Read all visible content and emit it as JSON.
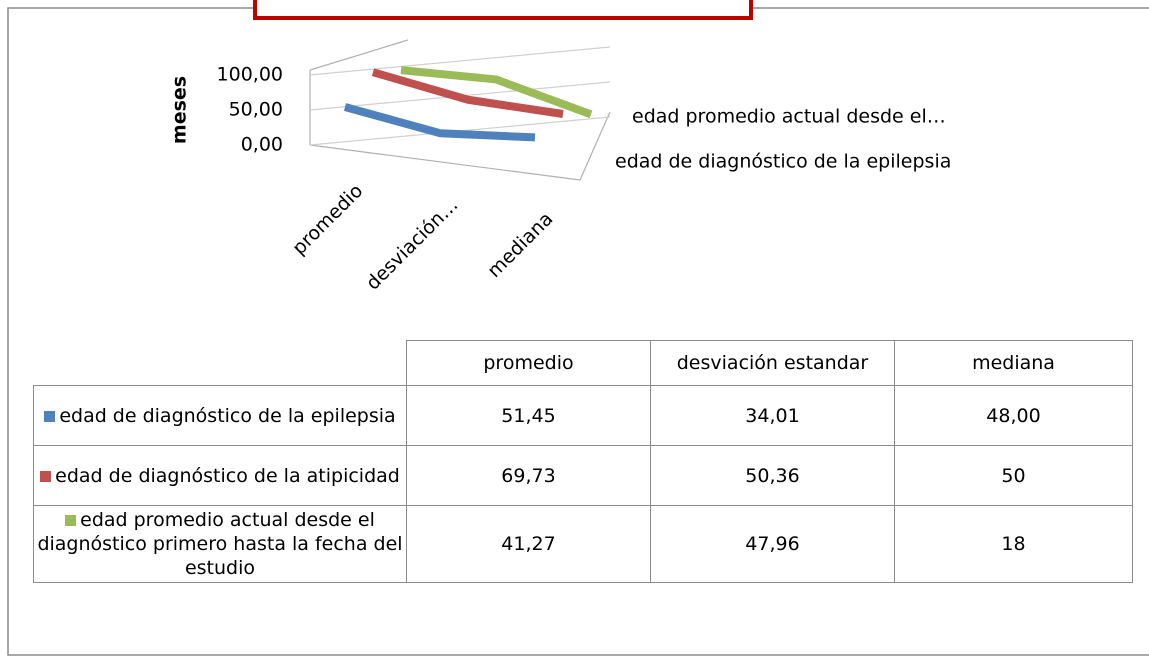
{
  "chart_data": {
    "type": "line3d",
    "ylabel": "meses",
    "categories": [
      "promedio",
      "desviación estandar",
      "mediana"
    ],
    "category_axis_labels": [
      "promedio",
      "desviación…",
      "mediana"
    ],
    "depth_axis_labels": [
      "edad de diagnóstico de la epilepsia",
      "edad promedio actual desde el…"
    ],
    "ylim": [
      0,
      100
    ],
    "yticks": [
      {
        "value": 0,
        "label": "0,00"
      },
      {
        "value": 50,
        "label": "50,00"
      },
      {
        "value": 100,
        "label": "100,00"
      }
    ],
    "grid": true,
    "series": [
      {
        "name": "edad de diagnóstico de la epilepsia",
        "color": "#4f81bd",
        "values": [
          51.45,
          34.01,
          48.0
        ],
        "value_labels": [
          "51,45",
          "34,01",
          "48,00"
        ]
      },
      {
        "name": "edad de diagnóstico de la atipicidad",
        "color": "#c0504d",
        "values": [
          69.73,
          50.36,
          50
        ],
        "value_labels": [
          "69,73",
          "50,36",
          "50"
        ]
      },
      {
        "name": "edad promedio actual desde el diagnóstico primero hasta la fecha del estudio",
        "color": "#9bbb59",
        "values": [
          41.27,
          47.96,
          18
        ],
        "value_labels": [
          "41,27",
          "47,96",
          "18"
        ]
      }
    ]
  }
}
